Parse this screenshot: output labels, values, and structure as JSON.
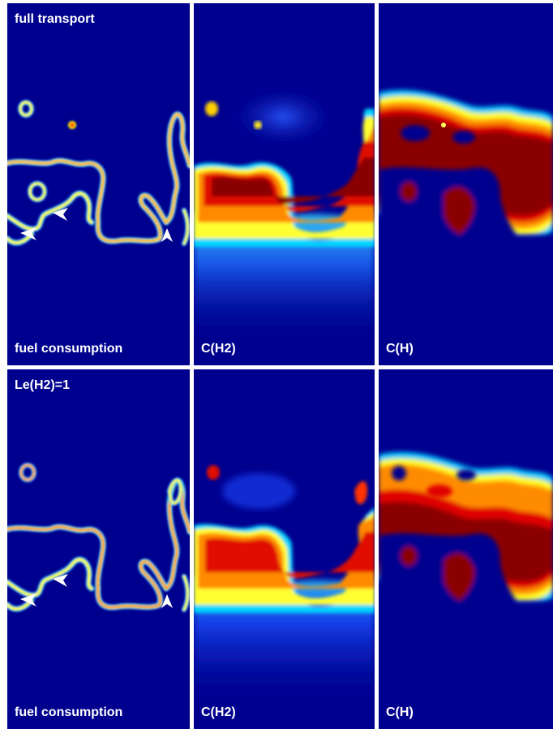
{
  "figure": {
    "rows": [
      {
        "row_label": "full transport",
        "panels": [
          {
            "label": "fuel consumption",
            "kind": "fuel"
          },
          {
            "label": "C(H2)",
            "kind": "h2"
          },
          {
            "label": "C(H)",
            "kind": "h"
          }
        ]
      },
      {
        "row_label": "Le(H2)=1",
        "panels": [
          {
            "label": "fuel consumption",
            "kind": "fuel"
          },
          {
            "label": "C(H2)",
            "kind": "h2"
          },
          {
            "label": "C(H)",
            "kind": "h"
          }
        ]
      }
    ],
    "colors": {
      "background": "#00008f",
      "separator": "#ffffff",
      "label_text": "#ffffff",
      "colormap": [
        "#00008f",
        "#0000ff",
        "#00bfff",
        "#7fff7f",
        "#ffff00",
        "#ff7f00",
        "#ff0000",
        "#7f0000"
      ]
    },
    "markers": {
      "arrowheads_per_fuel_panel": 3,
      "marker_color": "#ffffff"
    }
  }
}
